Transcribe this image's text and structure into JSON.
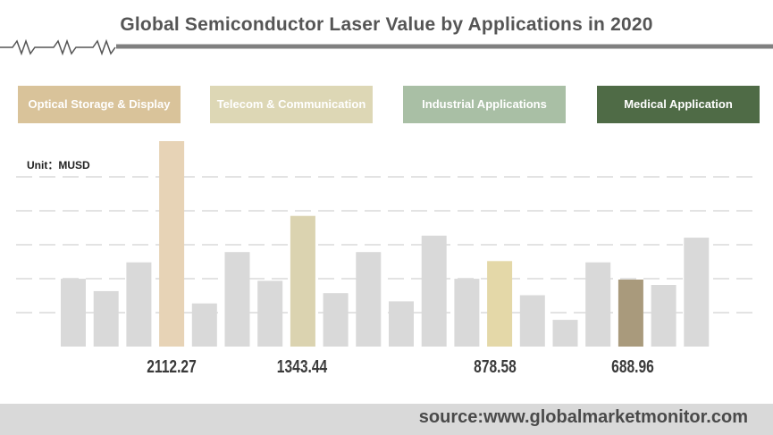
{
  "title": "Global Semiconductor Laser Value by Applications in 2020",
  "unit_label": "Unit：MUSD",
  "source": "source:www.globalmarketmonitor.com",
  "colors": {
    "optical": "#d9c39a",
    "telecom": "#ddd7b5",
    "industrial": "#a9bfa5",
    "medical": "#4f6b46",
    "background_bar": "#d9d9d9",
    "optical_bar": "#e7d3b6",
    "telecom_bar": "#dbd3b0",
    "industrial_bar": "#e4d8a8",
    "medical_bar": "#a99a7c"
  },
  "chart_data": {
    "type": "bar",
    "title": "Global Semiconductor Laser Value by Applications in 2020",
    "unit": "MUSD",
    "grid": true,
    "legend_placement": "top",
    "series": [
      {
        "name": "Optical Storage & Display",
        "value": 2112.27
      },
      {
        "name": "Telecom & Communication",
        "value": 1343.44
      },
      {
        "name": "Industrial Applications",
        "value": 878.58
      },
      {
        "name": "Medical Application",
        "value": 688.96
      }
    ],
    "value_labels": [
      "2112.27",
      "1343.44",
      "878.58",
      "688.96"
    ]
  }
}
